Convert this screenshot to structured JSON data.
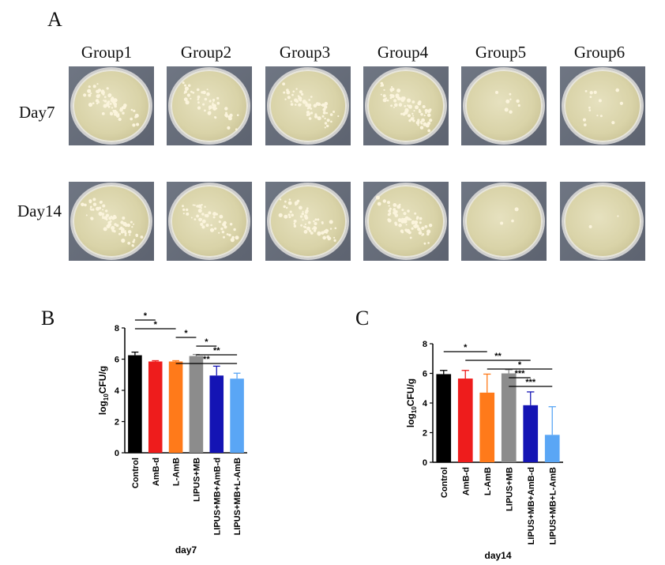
{
  "panel_a": {
    "letter": "A",
    "groups": [
      "Group1",
      "Group2",
      "Group3",
      "Group4",
      "Group5",
      "Group6"
    ],
    "days": [
      "Day7",
      "Day14"
    ]
  },
  "chart_data": [
    {
      "panel": "B",
      "type": "bar",
      "xlabel": "day7",
      "ylabel": "log10CFU/g",
      "ylim": [
        0,
        8
      ],
      "yticks": [
        0,
        2,
        4,
        6,
        8
      ],
      "categories": [
        "Control",
        "AmB-d",
        "L-AmB",
        "LIPUS+MB",
        "LIPUS+MB+AmB-d",
        "LIPUS+MB+L-AmB"
      ],
      "values": [
        6.25,
        5.85,
        5.85,
        6.2,
        4.95,
        4.75
      ],
      "errors": [
        0.2,
        0.05,
        0.05,
        0.1,
        0.6,
        0.35
      ],
      "colors": [
        "#000000",
        "#ee1c1c",
        "#ff7a1a",
        "#8c8c8c",
        "#1414b4",
        "#5aa6f5"
      ],
      "significance": [
        {
          "from": 0,
          "to": 1,
          "label": "*"
        },
        {
          "from": 0,
          "to": 2,
          "label": "*"
        },
        {
          "from": 2,
          "to": 3,
          "label": "*"
        },
        {
          "from": 3,
          "to": 4,
          "label": "*"
        },
        {
          "from": 3,
          "to": 5,
          "label": "**"
        },
        {
          "from": 2,
          "to": 5,
          "label": "**"
        }
      ]
    },
    {
      "panel": "C",
      "type": "bar",
      "xlabel": "day14",
      "ylabel": "log10CFU/g",
      "ylim": [
        0,
        8
      ],
      "yticks": [
        0,
        2,
        4,
        6,
        8
      ],
      "categories": [
        "Control",
        "AmB-d",
        "L-AmB",
        "LIPUS+MB",
        "LIPUS+MB+AmB-d",
        "LIPUS+MB+L-AmB"
      ],
      "values": [
        5.95,
        5.65,
        4.7,
        6.0,
        3.85,
        1.85
      ],
      "errors": [
        0.25,
        0.55,
        1.25,
        0.25,
        0.9,
        1.9
      ],
      "colors": [
        "#000000",
        "#ee1c1c",
        "#ff7a1a",
        "#8c8c8c",
        "#1414b4",
        "#5aa6f5"
      ],
      "significance": [
        {
          "from": 0,
          "to": 2,
          "label": "*"
        },
        {
          "from": 1,
          "to": 4,
          "label": "**"
        },
        {
          "from": 2,
          "to": 5,
          "label": "*"
        },
        {
          "from": 3,
          "to": 4,
          "label": "***"
        },
        {
          "from": 3,
          "to": 5,
          "label": "***"
        }
      ]
    }
  ]
}
